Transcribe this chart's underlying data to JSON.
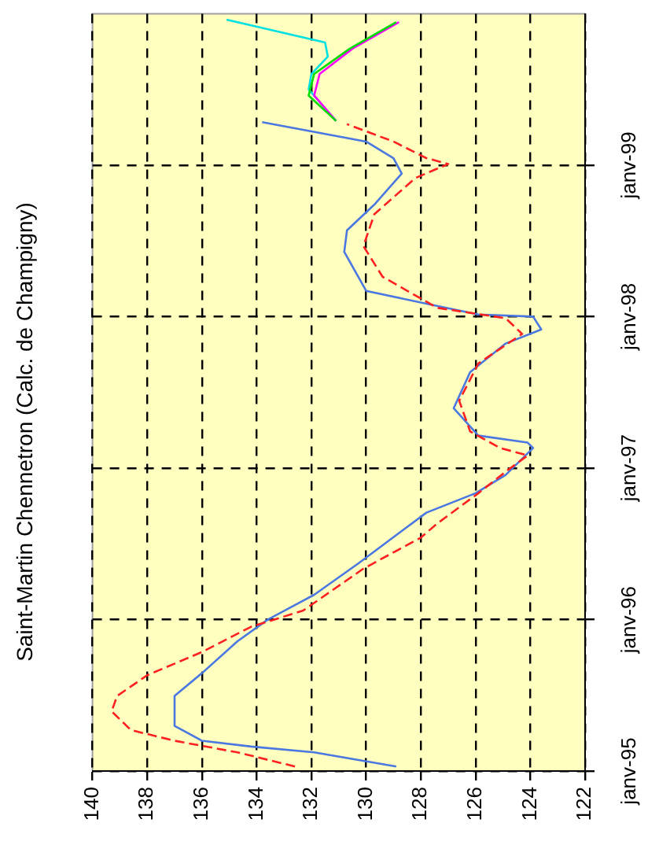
{
  "chart_data": {
    "type": "line",
    "orientation": "horizontal",
    "title": "Saint-Martin Chennetron (Calc. de Champigny)",
    "ylim": [
      "1995-01",
      "2000-01"
    ],
    "xlim": [
      140,
      122
    ],
    "yticks": [
      {
        "value": "1995-01",
        "label": "janv-95"
      },
      {
        "value": "1996-01",
        "label": "janv-96"
      },
      {
        "value": "1997-01",
        "label": "janv-97"
      },
      {
        "value": "1998-01",
        "label": "janv-98"
      },
      {
        "value": "1999-01",
        "label": "janv-99"
      }
    ],
    "xticks": [
      140,
      138,
      136,
      134,
      132,
      130,
      128,
      126,
      124,
      122
    ],
    "grid": true,
    "legend": false,
    "marker": "none",
    "line_style": "solid",
    "series": [
      {
        "color": "#ff2020",
        "line_style": "dashed",
        "x": [
          "1995-01-12",
          "1995-02-15",
          "1995-03-15",
          "1995-04-10",
          "1995-05-25",
          "1995-07-01",
          "1995-08-20",
          "1995-10-15",
          "1995-12-15",
          "1996-01-23",
          "1996-05-03",
          "1996-07-17",
          "1996-08-20",
          "1996-11-01",
          "1996-12-28",
          "1997-01-31",
          "1997-02-18",
          "1997-03-30",
          "1997-06-12",
          "1997-09-10",
          "1997-11-20",
          "1997-12-28",
          "1998-01-22",
          "1998-04-07",
          "1998-06-20",
          "1998-09-05",
          "1998-12-01",
          "1999-01-04",
          "1999-01-18",
          "1999-02-27",
          "1999-04-10"
        ],
        "values": [
          132.6,
          134.7,
          137.0,
          138.6,
          139.3,
          139.1,
          138.0,
          136.0,
          134.2,
          132.3,
          130.1,
          128.0,
          127.4,
          125.9,
          124.8,
          124.1,
          125.1,
          126.2,
          126.6,
          125.9,
          124.3,
          124.9,
          127.4,
          129.4,
          130.1,
          129.7,
          128.2,
          127.0,
          127.8,
          129.0,
          130.7
        ]
      },
      {
        "color": "#4a78e0",
        "x": [
          "1995-01-12",
          "1995-02-15",
          "1995-03-01",
          "1995-03-15",
          "1995-04-20",
          "1995-07-01",
          "1995-08-25",
          "1995-11-10",
          "1996-01-01",
          "1996-03-01",
          "1996-05-15",
          "1996-07-28",
          "1996-09-15",
          "1996-11-01",
          "1996-12-15",
          "1997-02-18",
          "1997-03-03",
          "1997-03-20",
          "1997-05-25",
          "1997-08-20",
          "1997-10-28",
          "1997-12-01",
          "1998-01-01",
          "1998-01-06",
          "1998-02-01",
          "1998-03-04",
          "1998-06-06",
          "1998-07-28",
          "1998-09-28",
          "1998-12-12",
          "1999-01-18",
          "1999-02-27",
          "1999-04-15"
        ],
        "values": [
          128.9,
          131.9,
          134.2,
          136.0,
          137.0,
          137.0,
          136.0,
          134.7,
          133.6,
          131.9,
          130.3,
          128.8,
          127.8,
          126.0,
          124.9,
          123.9,
          124.1,
          125.9,
          126.8,
          126.2,
          124.9,
          123.6,
          123.9,
          125.9,
          127.8,
          130.0,
          130.8,
          130.7,
          129.7,
          128.7,
          129.0,
          130.0,
          133.8
        ]
      },
      {
        "color": "#00dd00",
        "x": [
          "1999-04-18",
          "1999-06-18",
          "1999-08-09",
          "1999-10-09",
          "1999-12-12"
        ],
        "values": [
          131.1,
          132.1,
          131.9,
          130.6,
          128.9
        ]
      },
      {
        "color": "#ff00ff",
        "x": [
          "1999-04-18",
          "1999-06-18",
          "1999-08-09",
          "1999-10-09",
          "1999-12-12"
        ],
        "values": [
          131.1,
          131.9,
          131.7,
          130.5,
          128.8
        ]
      },
      {
        "color": "#00e0e0",
        "x": [
          "1999-04-18",
          "1999-07-03",
          "1999-08-09",
          "1999-09-20",
          "1999-10-24",
          "1999-12-18"
        ],
        "values": [
          131.1,
          132.1,
          132.0,
          131.4,
          131.5,
          135.1
        ]
      }
    ]
  }
}
